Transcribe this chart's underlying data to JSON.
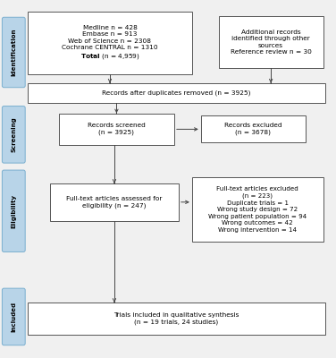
{
  "fig_width": 3.76,
  "fig_height": 4.0,
  "bg_color": "#f0f0f0",
  "box_edge_color": "#555555",
  "box_fill_color": "#ffffff",
  "side_label_bg": "#b8d4e8",
  "side_label_edge": "#7aafcf",
  "arrow_color": "#444444",
  "font_size": 5.3,
  "side_font_size": 5.0,
  "box1_text": "Medline n = 428\nEmbase n = 913\nWeb of Science n = 2308\nCochrane CENTRAL n = 1310\n$\\bf{Total}$ (n = 4,959)",
  "box2_text": "Additional records\nidentified through other\nsources\nReference review n = 30",
  "box3_text": "Records after duplicates removed (n = 3925)",
  "box4_text": "Records screened\n(n = 3925)",
  "box5_text": "Records excluded\n(n = 3678)",
  "box6_text": "Full-text articles assessed for\neligibility (n = 247)",
  "box7_text": "Full-text articles excluded\n(n = 223)\nDuplicate trials = 1\nWrong study design = 72\nWrong patient population = 94\nWrong outcomes = 42\nWrong intervention = 14",
  "box8_text": "Trials included in qualitative synthesis\n(n = 19 trials, 24 studies)",
  "side_labels": [
    "Identification",
    "Screening",
    "Eligibility",
    "Included"
  ]
}
